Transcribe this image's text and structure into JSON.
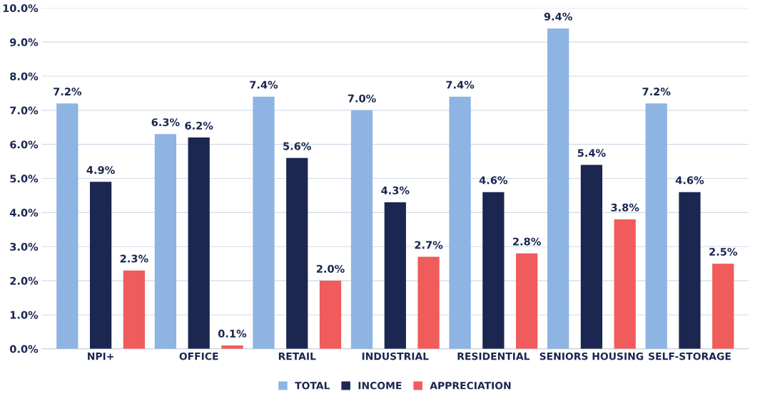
{
  "chart_data": {
    "type": "bar",
    "categories": [
      "NPI+",
      "OFFICE",
      "RETAIL",
      "INDUSTRIAL",
      "RESIDENTIAL",
      "SENIORS HOUSING",
      "SELF-STORAGE"
    ],
    "series": [
      {
        "name": "TOTAL",
        "color": "#8db4e2",
        "values": [
          7.2,
          6.3,
          7.4,
          7.0,
          7.4,
          9.4,
          7.2
        ],
        "value_labels": [
          "7.2%",
          "6.3%",
          "7.4%",
          "7.0%",
          "7.4%",
          "9.4%",
          "7.2%"
        ]
      },
      {
        "name": "INCOME",
        "color": "#1b2750",
        "values": [
          4.9,
          6.2,
          5.6,
          4.3,
          4.6,
          5.4,
          4.6
        ],
        "value_labels": [
          "4.9%",
          "6.2%",
          "5.6%",
          "4.3%",
          "4.6%",
          "5.4%",
          "4.6%"
        ]
      },
      {
        "name": "APPRECIATION",
        "color": "#f05b5b",
        "values": [
          2.3,
          0.1,
          2.0,
          2.7,
          2.8,
          3.8,
          2.5
        ],
        "value_labels": [
          "2.3%",
          "0.1%",
          "2.0%",
          "2.7%",
          "2.8%",
          "3.8%",
          "2.5%"
        ]
      }
    ],
    "ylim": [
      0,
      10
    ],
    "yticks": [
      {
        "value": 0,
        "label": "0.0%"
      },
      {
        "value": 1,
        "label": "1.0%"
      },
      {
        "value": 2,
        "label": "2.0%"
      },
      {
        "value": 3,
        "label": "3.0%"
      },
      {
        "value": 4,
        "label": "4.0%"
      },
      {
        "value": 5,
        "label": "5.0%"
      },
      {
        "value": 6,
        "label": "6.0%"
      },
      {
        "value": 7,
        "label": "7.0%"
      },
      {
        "value": 8,
        "label": "8.0%"
      },
      {
        "value": 9,
        "label": "9.0%"
      },
      {
        "value": 10,
        "label": "10.0%"
      }
    ],
    "grid": "y",
    "legend": "bottom"
  }
}
